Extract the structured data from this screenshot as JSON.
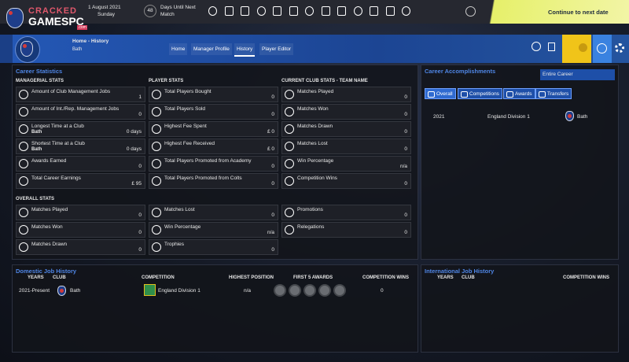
{
  "watermark": {
    "line1": "CRACKED",
    "line2": "GAMESPC",
    "suffix": ".com"
  },
  "top_bar": {
    "date": "1 August 2021",
    "weekday": "Sunday",
    "days_count": 48,
    "days_label_1": "Days Until Next",
    "days_label_2": "Match",
    "continue": "Continue to next date"
  },
  "header": {
    "breadcrumb": "Home - History",
    "club": "Bath",
    "tabs": [
      "Home",
      "Manager Profile",
      "History",
      "Player Editor"
    ]
  },
  "career_statistics": {
    "title": "Career Statistics",
    "columns": [
      {
        "heading": "MANAGERIAL STATS",
        "rows": [
          {
            "label": "Amount of Club Management Jobs",
            "value": 1
          },
          {
            "label": "Amount of Int./Rep. Management Jobs",
            "value": 0
          },
          {
            "label": "Longest Time at a Club",
            "sub": "Bath",
            "value": "0 days"
          },
          {
            "label": "Shortest Time at a Club",
            "sub": "Bath",
            "value": "0 days"
          },
          {
            "label": "Awards Earned",
            "value": 0
          },
          {
            "label": "Total Career Earnings",
            "value": "£ 95"
          }
        ]
      },
      {
        "heading": "PLAYER STATS",
        "rows": [
          {
            "label": "Total Players Bought",
            "value": 0
          },
          {
            "label": "Total Players Sold",
            "value": 0
          },
          {
            "label": "Highest Fee Spent",
            "value": "£ 0"
          },
          {
            "label": "Highest Fee Received",
            "value": "£ 0"
          },
          {
            "label": "Total Players Promoted from Academy",
            "value": 0
          },
          {
            "label": "Total Players Promoted from Colts",
            "value": 0
          }
        ]
      },
      {
        "heading": "CURRENT CLUB STATS - TEAM NAME",
        "rows": [
          {
            "label": "Matches Played",
            "value": 0
          },
          {
            "label": "Matches Won",
            "value": 0
          },
          {
            "label": "Matches Drawn",
            "value": 0
          },
          {
            "label": "Matches Lost",
            "value": 0
          },
          {
            "label": "Win Percentage",
            "value": "n/a"
          },
          {
            "label": "Competition Wins",
            "value": 0
          }
        ]
      }
    ],
    "overall": {
      "heading": "OVERALL STATS",
      "columns": [
        {
          "rows": [
            {
              "label": "Matches Played",
              "value": 0
            },
            {
              "label": "Matches Won",
              "value": 0
            },
            {
              "label": "Matches Drawn",
              "value": 0
            }
          ]
        },
        {
          "rows": [
            {
              "label": "Matches Lost",
              "value": 0
            },
            {
              "label": "Win Percentage",
              "value": "n/a"
            },
            {
              "label": "Trophies",
              "value": 0
            }
          ]
        },
        {
          "rows": [
            {
              "label": "Promotions",
              "value": 0
            },
            {
              "label": "Relegations",
              "value": 0
            }
          ]
        }
      ]
    }
  },
  "career_accomplishments": {
    "title": "Career Accomplishments",
    "filter": "Entire Career",
    "buttons": [
      "Overall",
      "Competitions",
      "Awards",
      "Transfers"
    ],
    "rows": [
      {
        "year": 2021,
        "competition": "England Division 1",
        "club": "Bath"
      }
    ]
  },
  "domestic_job_history": {
    "title": "Domestic Job History",
    "headers": [
      "YEARS",
      "CLUB",
      "COMPETITION",
      "HIGHEST POSITION",
      "FIRST 5 AWARDS",
      "COMPETITION WINS"
    ],
    "rows": [
      {
        "years": "2021-Present",
        "club": "Bath",
        "competition": "England Division 1",
        "highest_position": "n/a",
        "competition_wins": 0
      }
    ]
  },
  "international_job_history": {
    "title": "International Job History",
    "headers": [
      "YEARS",
      "CLUB",
      "COMPETITION WINS"
    ]
  }
}
